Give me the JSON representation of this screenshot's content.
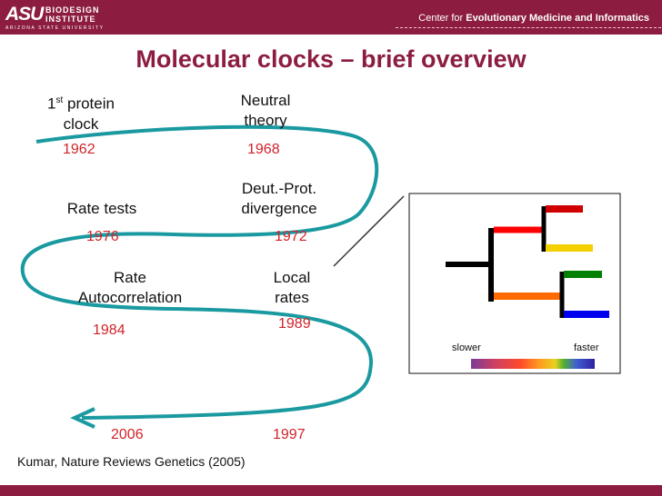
{
  "header": {
    "logo_mark": "ASU",
    "logo_title_1": "BIODESIGN",
    "logo_title_2": "INSTITUTE",
    "logo_subtitle": "ARIZONA STATE UNIVERSITY",
    "center_prefix": "Center for",
    "center_name": "Evolutionary Medicine and Informatics"
  },
  "title": "Molecular clocks – brief overview",
  "timeline": [
    {
      "label_1": "1st protein",
      "label_2": "clock",
      "year": "1962"
    },
    {
      "label_1": "Neutral",
      "label_2": "theory",
      "year": "1968"
    },
    {
      "label_1": "Deut.-Prot.",
      "label_2": "divergence",
      "year": "1972"
    },
    {
      "label_1": "Rate tests",
      "label_2": "",
      "year": "1976"
    },
    {
      "label_1": "Rate",
      "label_2": "Autocorrelation",
      "year": "1984"
    },
    {
      "label_1": "Local",
      "label_2": "rates",
      "year": "1989"
    },
    {
      "year": "1997"
    },
    {
      "year": "2006"
    }
  ],
  "legend": {
    "slower": "slower",
    "faster": "faster"
  },
  "citation": "Kumar, Nature Reviews Genetics (2005)",
  "colors": {
    "brand": "#8c1d40",
    "path": "#1a9aa0",
    "year": "#d2232a"
  }
}
